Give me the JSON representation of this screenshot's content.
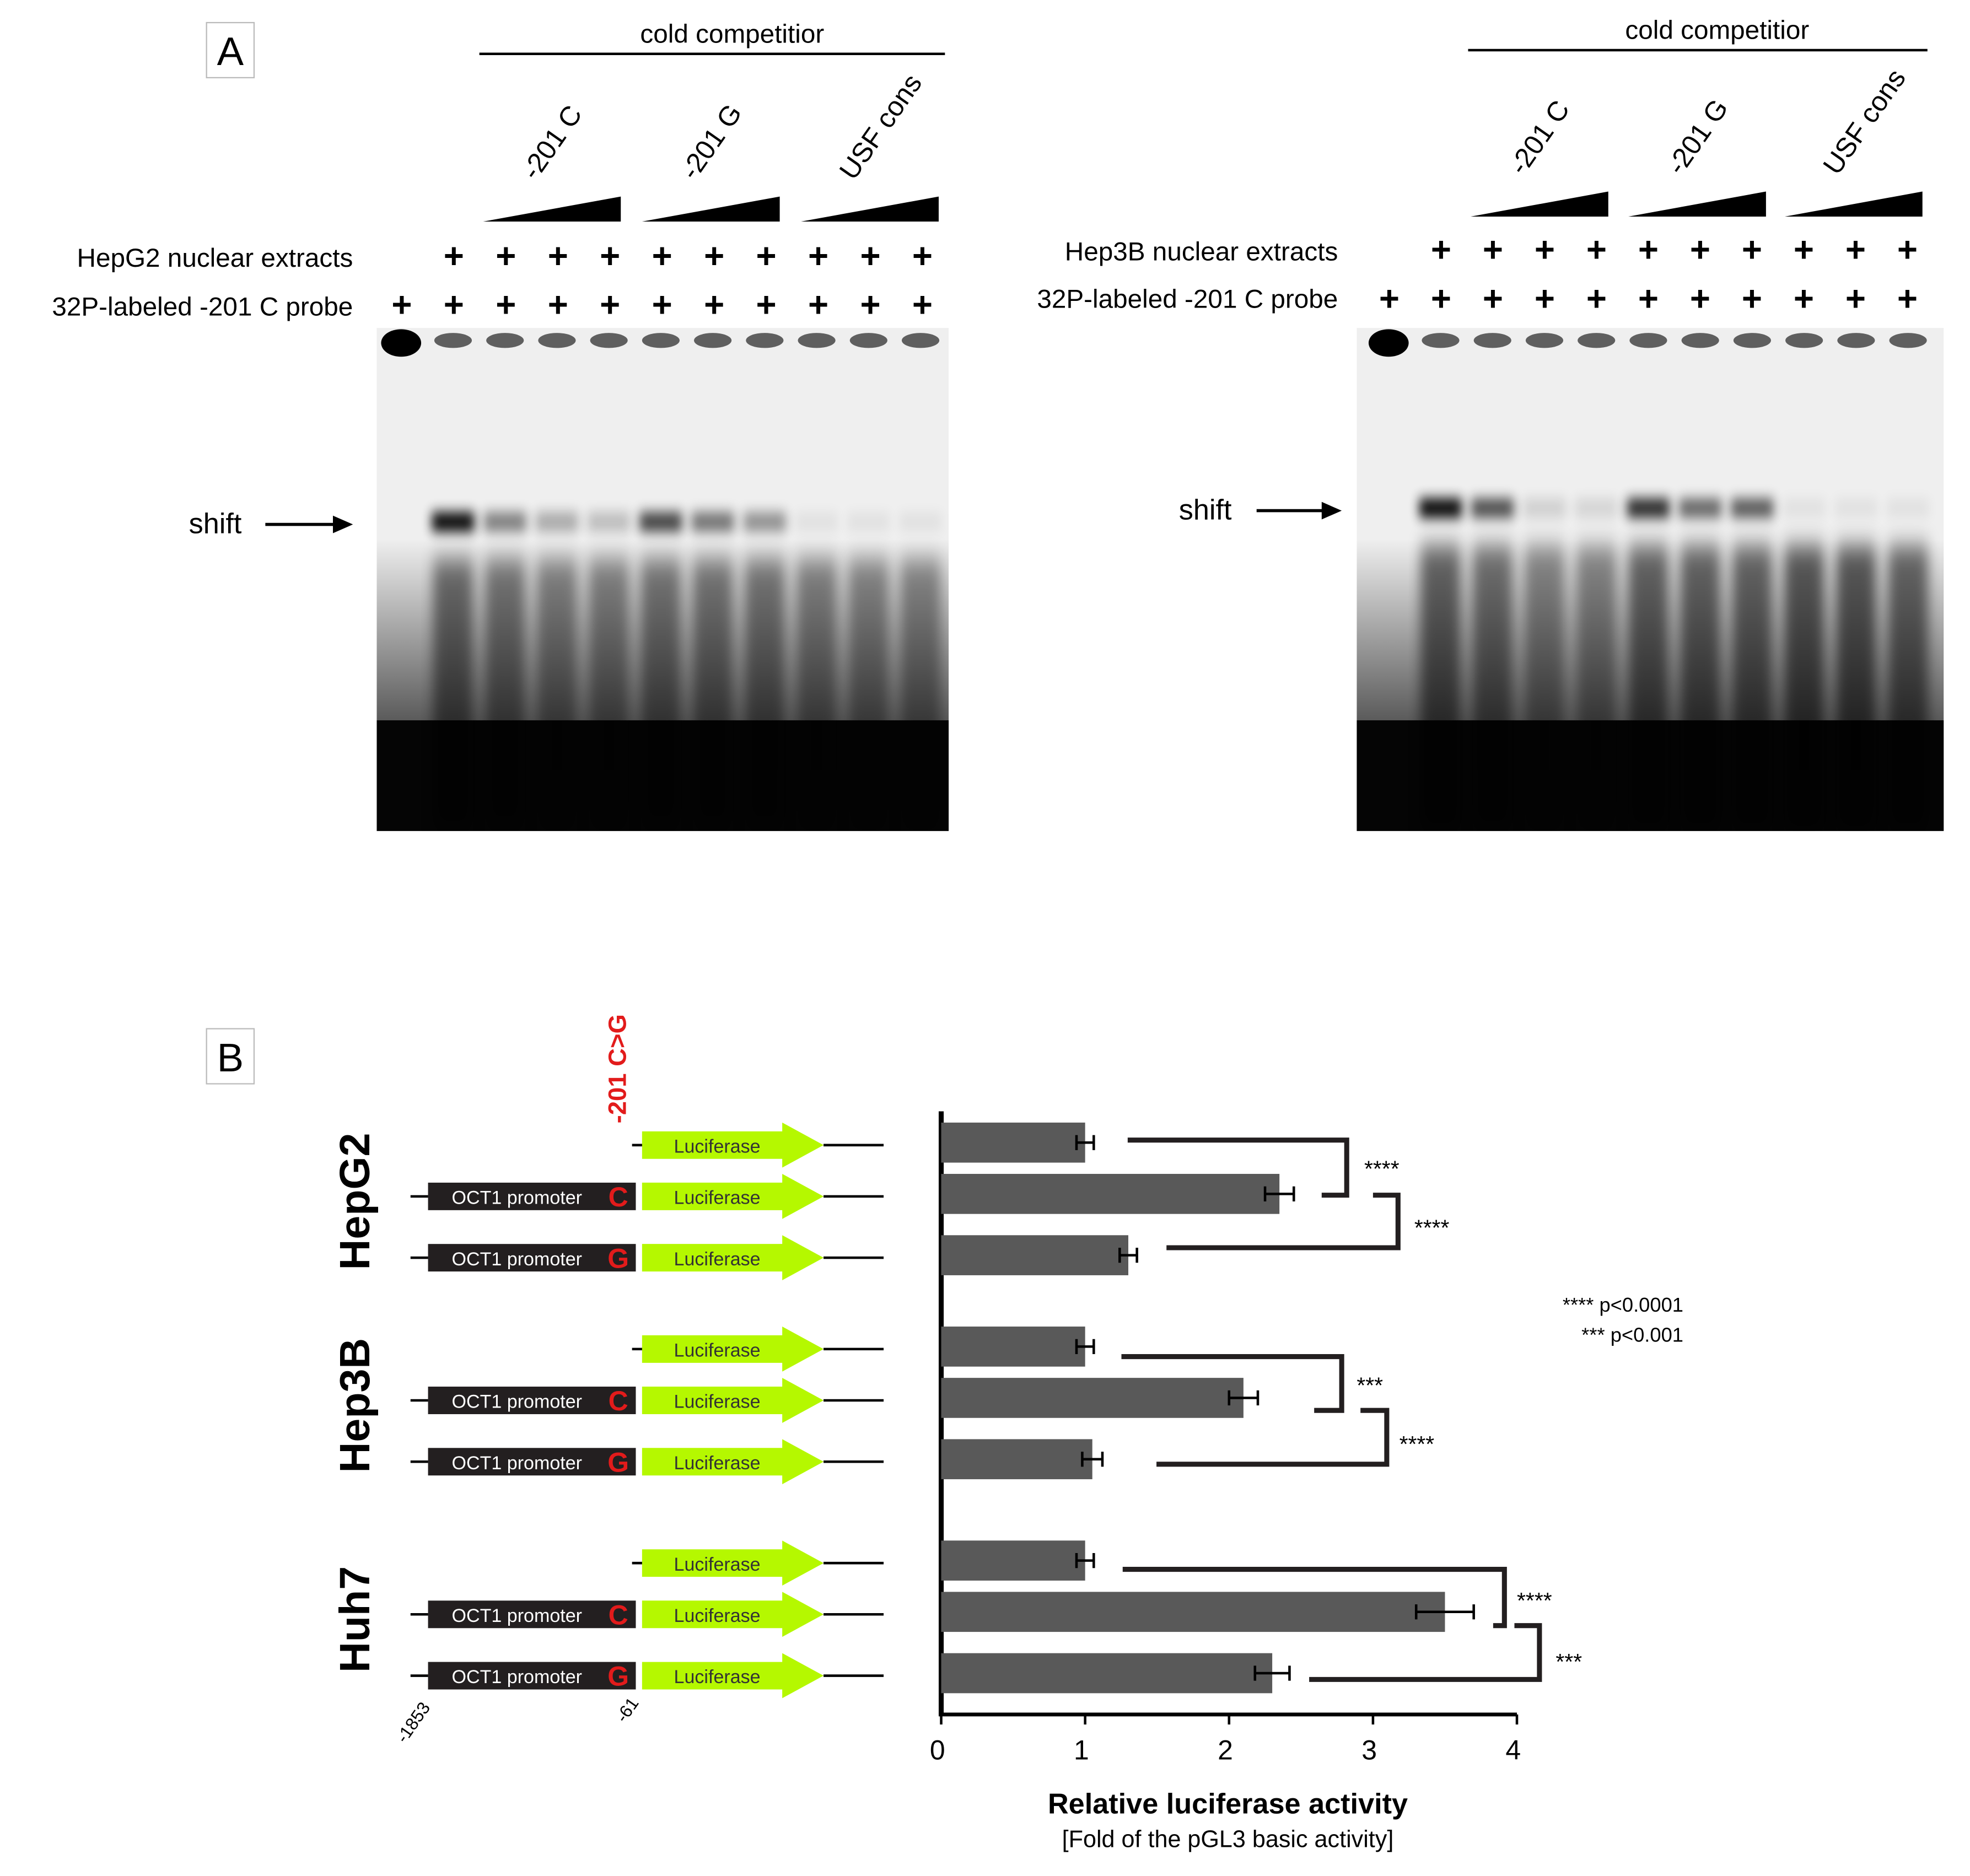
{
  "panel_a": {
    "label": "A",
    "competitor_label": "cold competitior",
    "competitor_groups": [
      "-201 C",
      "-201 G",
      "USF cons"
    ],
    "row_labels": {
      "extract_left": "HepG2 nuclear extracts",
      "extract_right": "Hep3B nuclear extracts",
      "probe": "32P-labeled -201 C probe"
    },
    "plus": "+",
    "shift_label": "shift",
    "gel_left": {
      "bands": [
        0.95,
        0.45,
        0.28,
        0.2,
        0.7,
        0.5,
        0.38,
        0.05,
        0.05,
        0.05
      ],
      "lower": [
        0.5,
        0.45,
        0.4,
        0.4,
        0.45,
        0.45,
        0.45,
        0.4,
        0.38,
        0.38
      ]
    },
    "gel_right": {
      "bands": [
        0.95,
        0.65,
        0.12,
        0.1,
        0.8,
        0.55,
        0.6,
        0.05,
        0.05,
        0.05
      ],
      "lower": [
        0.55,
        0.5,
        0.4,
        0.4,
        0.55,
        0.55,
        0.55,
        0.6,
        0.6,
        0.55
      ]
    }
  },
  "panel_b": {
    "label": "B",
    "mutation_label": "-201 C>G",
    "cell_lines": [
      "HepG2",
      "Hep3B",
      "Huh7"
    ],
    "promoter_label": "OCT1 promoter",
    "luciferase_label": "Luciferase",
    "allele_c": "C",
    "allele_g": "G",
    "position_start": "-1853",
    "position_end": "-61",
    "sig_legend": [
      {
        "stars": "****",
        "p": "p<0.0001"
      },
      {
        "stars": "***",
        "p": "p<0.001"
      }
    ],
    "significance": [
      "****",
      "****",
      "***",
      "****",
      "****",
      "***"
    ]
  },
  "chart_data": {
    "type": "bar",
    "orientation": "horizontal",
    "xlabel": "Relative luciferase activity",
    "xlabel_sub": "[Fold of the pGL3 basic activity]",
    "xlim": [
      0,
      4
    ],
    "xticks": [
      "0",
      "1",
      "2",
      "3",
      "4"
    ],
    "groups": [
      {
        "name": "HepG2",
        "values": [
          1.0,
          2.35,
          1.3
        ],
        "errors": [
          0.06,
          0.1,
          0.06
        ]
      },
      {
        "name": "Hep3B",
        "values": [
          1.0,
          2.1,
          1.05
        ],
        "errors": [
          0.06,
          0.1,
          0.07
        ]
      },
      {
        "name": "Huh7",
        "values": [
          1.0,
          3.5,
          2.3
        ],
        "errors": [
          0.06,
          0.2,
          0.12
        ]
      }
    ],
    "categories": [
      "pGL3 basic",
      "-201 C",
      "-201 G"
    ]
  },
  "colors": {
    "bar": "#595959",
    "luciferase": "#b5f800",
    "promoter": "#231f20",
    "allele": "#e21b1b",
    "mutation": "#e21b1b"
  }
}
